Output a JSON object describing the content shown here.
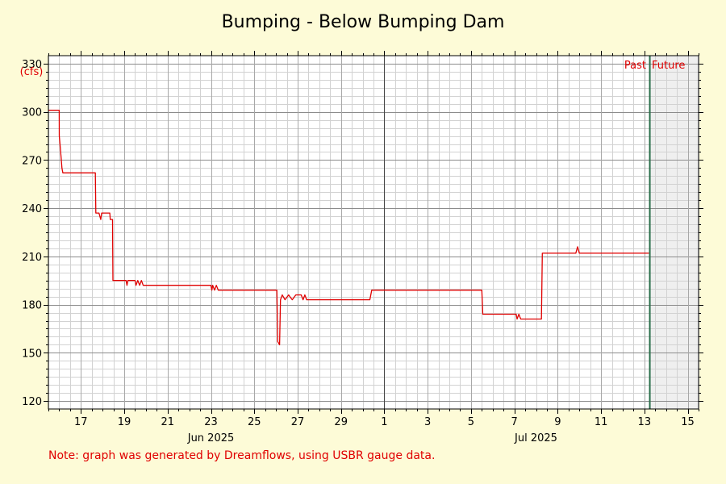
{
  "chart_data": {
    "type": "line",
    "title": "Bumping - Below Bumping Dam",
    "ylabel": "(cfs)",
    "ylim": [
      115,
      335
    ],
    "y_ticks": [
      120,
      150,
      180,
      210,
      240,
      270,
      300,
      330
    ],
    "y_tick_labels": [
      "120",
      "150",
      "180",
      "210",
      "240",
      "270",
      "300",
      "330"
    ],
    "x_start": "2025-06-15T12:00",
    "x_end": "2025-07-15T12:00",
    "x_ticks": [
      {
        "date": "2025-06-17",
        "label": "17"
      },
      {
        "date": "2025-06-19",
        "label": "19"
      },
      {
        "date": "2025-06-21",
        "label": "21"
      },
      {
        "date": "2025-06-23",
        "label": "23"
      },
      {
        "date": "2025-06-25",
        "label": "25"
      },
      {
        "date": "2025-06-27",
        "label": "27"
      },
      {
        "date": "2025-06-29",
        "label": "29"
      },
      {
        "date": "2025-07-01",
        "label": "1"
      },
      {
        "date": "2025-07-03",
        "label": "3"
      },
      {
        "date": "2025-07-05",
        "label": "5"
      },
      {
        "date": "2025-07-07",
        "label": "7"
      },
      {
        "date": "2025-07-09",
        "label": "9"
      },
      {
        "date": "2025-07-11",
        "label": "11"
      },
      {
        "date": "2025-07-13",
        "label": "13"
      },
      {
        "date": "2025-07-15",
        "label": "15"
      }
    ],
    "month_labels": [
      {
        "date": "2025-06-23",
        "label": "Jun 2025"
      },
      {
        "date": "2025-07-08",
        "label": "Jul 2025"
      }
    ],
    "month_divider": "2025-07-01",
    "now": "2025-07-13T06:00",
    "past_label": "Past",
    "future_label": "Future",
    "series": [
      {
        "color": "#e00000",
        "points": [
          [
            "2025-06-15T12:00",
            301
          ],
          [
            "2025-06-16T00:00",
            301
          ],
          [
            "2025-06-16T00:05",
            285
          ],
          [
            "2025-06-16T02:00",
            272
          ],
          [
            "2025-06-16T03:00",
            265
          ],
          [
            "2025-06-16T04:00",
            262
          ],
          [
            "2025-06-17T16:00",
            262
          ],
          [
            "2025-06-17T16:30",
            237
          ],
          [
            "2025-06-17T20:00",
            237
          ],
          [
            "2025-06-17T22:00",
            233
          ],
          [
            "2025-06-17T23:00",
            237
          ],
          [
            "2025-06-18T08:00",
            237
          ],
          [
            "2025-06-18T08:30",
            233
          ],
          [
            "2025-06-18T11:00",
            233
          ],
          [
            "2025-06-18T11:30",
            195
          ],
          [
            "2025-06-19T02:00",
            195
          ],
          [
            "2025-06-19T03:00",
            192
          ],
          [
            "2025-06-19T04:00",
            195
          ],
          [
            "2025-06-19T12:00",
            195
          ],
          [
            "2025-06-19T13:00",
            192
          ],
          [
            "2025-06-19T15:00",
            195
          ],
          [
            "2025-06-19T17:00",
            192
          ],
          [
            "2025-06-19T19:00",
            195
          ],
          [
            "2025-06-19T21:00",
            192
          ],
          [
            "2025-06-23T00:00",
            192
          ],
          [
            "2025-06-23T01:00",
            189
          ],
          [
            "2025-06-23T02:00",
            192
          ],
          [
            "2025-06-23T04:00",
            189
          ],
          [
            "2025-06-23T06:00",
            192
          ],
          [
            "2025-06-23T08:00",
            189
          ],
          [
            "2025-06-26T01:00",
            189
          ],
          [
            "2025-06-26T02:00",
            157
          ],
          [
            "2025-06-26T04:00",
            155
          ],
          [
            "2025-06-26T05:00",
            183
          ],
          [
            "2025-06-26T07:00",
            186
          ],
          [
            "2025-06-26T10:00",
            183
          ],
          [
            "2025-06-26T14:00",
            186
          ],
          [
            "2025-06-26T18:00",
            183
          ],
          [
            "2025-06-26T22:00",
            186
          ],
          [
            "2025-06-27T04:00",
            186
          ],
          [
            "2025-06-27T06:00",
            183
          ],
          [
            "2025-06-27T08:00",
            186
          ],
          [
            "2025-06-27T10:00",
            183
          ],
          [
            "2025-06-30T08:00",
            183
          ],
          [
            "2025-06-30T10:00",
            189
          ],
          [
            "2025-07-05T12:00",
            189
          ],
          [
            "2025-07-05T13:00",
            174
          ],
          [
            "2025-07-07T02:00",
            174
          ],
          [
            "2025-07-07T03:00",
            171
          ],
          [
            "2025-07-07T05:00",
            174
          ],
          [
            "2025-07-07T07:00",
            171
          ],
          [
            "2025-07-08T06:00",
            171
          ],
          [
            "2025-07-08T07:00",
            212
          ],
          [
            "2025-07-09T20:00",
            212
          ],
          [
            "2025-07-09T22:00",
            216
          ],
          [
            "2025-07-10T00:00",
            212
          ],
          [
            "2025-07-13T05:00",
            212
          ]
        ]
      }
    ]
  },
  "note": "Note: graph was generated by Dreamflows, using USBR gauge data."
}
